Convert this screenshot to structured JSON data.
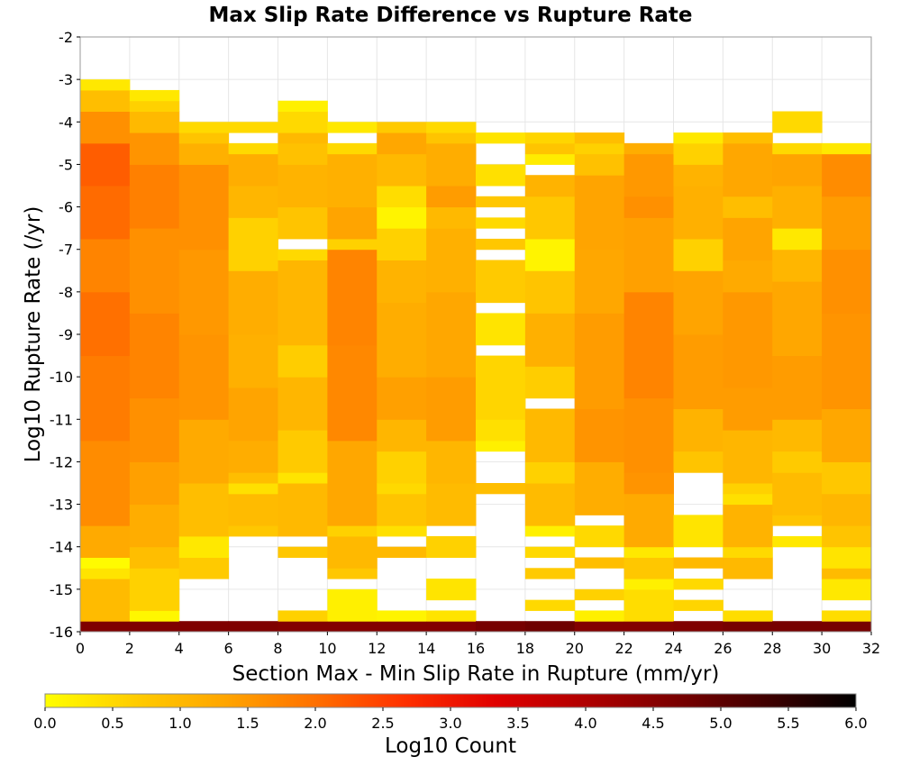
{
  "chart_data": {
    "type": "heatmap",
    "title": "Max Slip Rate Difference vs Rupture Rate",
    "xlabel": "Section Max - Min Slip Rate in Rupture (mm/yr)",
    "ylabel": "Log10 Rupture Rate (/yr)",
    "colorbar_label": "Log10 Count",
    "xlim": [
      0,
      32
    ],
    "ylim": [
      -16,
      -2
    ],
    "x_ticks": [
      "0",
      "2",
      "4",
      "6",
      "8",
      "10",
      "12",
      "14",
      "16",
      "18",
      "20",
      "22",
      "24",
      "26",
      "28",
      "30",
      "32"
    ],
    "y_ticks": [
      "-2",
      "-3",
      "-4",
      "-5",
      "-6",
      "-7",
      "-8",
      "-9",
      "-10",
      "-11",
      "-12",
      "-13",
      "-14",
      "-15",
      "-16"
    ],
    "colorbar_ticks": [
      "0.0",
      "0.5",
      "1.0",
      "1.5",
      "2.0",
      "2.5",
      "3.0",
      "3.5",
      "4.0",
      "4.5",
      "5.0",
      "5.5",
      "6.0"
    ],
    "colorbar_range": [
      0,
      6
    ],
    "colormap": [
      "#ffff00",
      "#ffcc00",
      "#ffa500",
      "#ff7000",
      "#ff3000",
      "#e00000",
      "#b00000",
      "#7a0000",
      "#400000",
      "#000000"
    ],
    "x_bin_width": 2,
    "y_bin_width": 0.25,
    "columns": [
      {
        "x": 1,
        "bands": [
          [
            -16,
            -15.75,
            4.6
          ],
          [
            -15.75,
            -14.75,
            0.95
          ],
          [
            -14.75,
            -14.5,
            0.35
          ],
          [
            -14.5,
            -14.25,
            0.05
          ],
          [
            -14.25,
            -13.5,
            1.25
          ],
          [
            -13.5,
            -11.5,
            1.65
          ],
          [
            -11.5,
            -9.5,
            1.85
          ],
          [
            -9.5,
            -8,
            2.0
          ],
          [
            -8,
            -6.75,
            1.75
          ],
          [
            -6.75,
            -5.5,
            2.05
          ],
          [
            -5.5,
            -4.5,
            2.2
          ],
          [
            -4.5,
            -3.75,
            1.6
          ],
          [
            -3.75,
            -3.25,
            0.9
          ],
          [
            -3.25,
            -3,
            0.3
          ]
        ]
      },
      {
        "x": 3,
        "bands": [
          [
            -16,
            -15.75,
            4.6
          ],
          [
            -15.75,
            -15.5,
            0.1
          ],
          [
            -15.5,
            -14.5,
            0.6
          ],
          [
            -14.5,
            -14,
            0.9
          ],
          [
            -14,
            -13,
            1.2
          ],
          [
            -13,
            -12,
            1.4
          ],
          [
            -12,
            -10.5,
            1.6
          ],
          [
            -10.5,
            -8.5,
            1.75
          ],
          [
            -8.5,
            -6.5,
            1.6
          ],
          [
            -6.5,
            -5,
            1.8
          ],
          [
            -5,
            -4.25,
            1.55
          ],
          [
            -4.25,
            -3.75,
            1.0
          ],
          [
            -3.75,
            -3.5,
            0.6
          ],
          [
            -3.5,
            -3.25,
            0.3
          ]
        ]
      },
      {
        "x": 5,
        "bands": [
          [
            -16,
            -15.75,
            4.6
          ],
          [
            -14.75,
            -14.25,
            0.7
          ],
          [
            -14.25,
            -13.75,
            0.3
          ],
          [
            -13.75,
            -12.5,
            0.9
          ],
          [
            -12.5,
            -11,
            1.25
          ],
          [
            -11,
            -9,
            1.55
          ],
          [
            -9,
            -7,
            1.5
          ],
          [
            -7,
            -5,
            1.6
          ],
          [
            -5,
            -4.5,
            1.15
          ],
          [
            -4.5,
            -4.25,
            0.8
          ],
          [
            -4.25,
            -4,
            0.5
          ]
        ]
      },
      {
        "x": 7,
        "bands": [
          [
            -16,
            -15.75,
            4.6
          ],
          [
            -13.75,
            -13.5,
            0.75
          ],
          [
            -13.5,
            -12.75,
            0.95
          ],
          [
            -12.75,
            -12.5,
            0.4
          ],
          [
            -12.5,
            -12.25,
            0.9
          ],
          [
            -12.25,
            -11.5,
            1.2
          ],
          [
            -11.5,
            -10.25,
            1.35
          ],
          [
            -10.25,
            -9,
            1.15
          ],
          [
            -9,
            -7.5,
            1.2
          ],
          [
            -7.5,
            -6.25,
            0.6
          ],
          [
            -6.25,
            -5.5,
            1.05
          ],
          [
            -5.5,
            -4.75,
            1.2
          ],
          [
            -4.75,
            -4.5,
            0.5
          ],
          [
            -4.25,
            -4,
            0.5
          ]
        ]
      },
      {
        "x": 9,
        "bands": [
          [
            -16,
            -15.75,
            4.55
          ],
          [
            -15.75,
            -15.5,
            0.6
          ],
          [
            -14.25,
            -14,
            0.75
          ],
          [
            -13.75,
            -12.5,
            1.0
          ],
          [
            -12.5,
            -12.25,
            0.35
          ],
          [
            -12.25,
            -11.25,
            0.7
          ],
          [
            -11.25,
            -10,
            1.05
          ],
          [
            -10,
            -9.25,
            0.65
          ],
          [
            -9.25,
            -7.25,
            1.05
          ],
          [
            -7.25,
            -7,
            0.5
          ],
          [
            -6.75,
            -6,
            0.8
          ],
          [
            -6,
            -5,
            1.1
          ],
          [
            -5,
            -4.5,
            0.85
          ],
          [
            -4.5,
            -4.25,
            1.0
          ],
          [
            -4.25,
            -3.75,
            0.5
          ],
          [
            -3.75,
            -3.5,
            0.2
          ]
        ]
      },
      {
        "x": 11,
        "bands": [
          [
            -16,
            -15.75,
            4.55
          ],
          [
            -15.75,
            -15,
            0.2
          ],
          [
            -14.75,
            -14.5,
            0.75
          ],
          [
            -14.5,
            -13.75,
            1.0
          ],
          [
            -13.75,
            -13.5,
            0.6
          ],
          [
            -13.5,
            -11.5,
            1.3
          ],
          [
            -11.5,
            -9.25,
            1.7
          ],
          [
            -9.25,
            -7,
            1.75
          ],
          [
            -7,
            -6.75,
            0.6
          ],
          [
            -6.75,
            -6,
            1.35
          ],
          [
            -6,
            -4.75,
            1.15
          ],
          [
            -4.75,
            -4.5,
            0.5
          ],
          [
            -4.25,
            -4,
            0.3
          ]
        ]
      },
      {
        "x": 13,
        "bands": [
          [
            -16,
            -15.75,
            4.55
          ],
          [
            -15.75,
            -15.5,
            0.15
          ],
          [
            -14.25,
            -14,
            1.0
          ],
          [
            -13.75,
            -13.5,
            0.4
          ],
          [
            -13.5,
            -12.75,
            0.8
          ],
          [
            -12.75,
            -12.5,
            0.5
          ],
          [
            -12.5,
            -11.75,
            0.6
          ],
          [
            -11.75,
            -11,
            1.05
          ],
          [
            -11,
            -10,
            1.4
          ],
          [
            -10,
            -8.25,
            1.2
          ],
          [
            -8.25,
            -7.25,
            1.1
          ],
          [
            -7.25,
            -6.5,
            0.6
          ],
          [
            -6.5,
            -6,
            0.15
          ],
          [
            -6,
            -5.5,
            0.45
          ],
          [
            -5.5,
            -4.75,
            1.0
          ],
          [
            -4.75,
            -4.25,
            1.3
          ],
          [
            -4.25,
            -4,
            0.7
          ]
        ]
      },
      {
        "x": 15,
        "bands": [
          [
            -16,
            -15.75,
            4.55
          ],
          [
            -15.75,
            -15.5,
            0.35
          ],
          [
            -15.25,
            -14.75,
            0.35
          ],
          [
            -14.25,
            -13.75,
            0.6
          ],
          [
            -13.5,
            -12.5,
            0.95
          ],
          [
            -12.5,
            -11.5,
            1.05
          ],
          [
            -11.5,
            -10,
            1.45
          ],
          [
            -10,
            -8,
            1.3
          ],
          [
            -8,
            -6.5,
            1.15
          ],
          [
            -6.5,
            -6,
            1.0
          ],
          [
            -6,
            -5.5,
            1.45
          ],
          [
            -5.5,
            -4.5,
            1.2
          ],
          [
            -4.5,
            -4.25,
            0.8
          ],
          [
            -4.25,
            -4,
            0.5
          ]
        ]
      },
      {
        "x": 17,
        "bands": [
          [
            -16,
            -15.75,
            4.7
          ],
          [
            -12.75,
            -12.5,
            0.9
          ],
          [
            -11.75,
            -11.5,
            0.2
          ],
          [
            -11.5,
            -11,
            0.4
          ],
          [
            -11,
            -9.5,
            0.55
          ],
          [
            -9.25,
            -8.5,
            0.35
          ],
          [
            -8.25,
            -7.25,
            0.7
          ],
          [
            -7,
            -6.75,
            0.75
          ],
          [
            -6.5,
            -6.25,
            0.5
          ],
          [
            -6,
            -5.75,
            0.75
          ],
          [
            -5.5,
            -5,
            0.4
          ],
          [
            -4.5,
            -4.25,
            0.35
          ]
        ]
      },
      {
        "x": 19,
        "bands": [
          [
            -16,
            -15.75,
            4.8
          ],
          [
            -15.5,
            -15.25,
            0.5
          ],
          [
            -14.75,
            -14.5,
            0.7
          ],
          [
            -14.25,
            -14,
            0.5
          ],
          [
            -13.75,
            -13.5,
            0.2
          ],
          [
            -13.5,
            -12.5,
            0.95
          ],
          [
            -12.5,
            -12,
            0.6
          ],
          [
            -12,
            -10.75,
            1.0
          ],
          [
            -10.5,
            -9.75,
            0.65
          ],
          [
            -9.75,
            -8.5,
            1.15
          ],
          [
            -8.5,
            -7.5,
            0.8
          ],
          [
            -7.5,
            -6.75,
            0.15
          ],
          [
            -6.75,
            -5.75,
            0.75
          ],
          [
            -5.75,
            -5.25,
            1.1
          ],
          [
            -5,
            -4.75,
            0.25
          ],
          [
            -4.75,
            -4.5,
            0.8
          ],
          [
            -4.5,
            -4.25,
            0.55
          ]
        ]
      },
      {
        "x": 21,
        "bands": [
          [
            -16,
            -15.75,
            4.55
          ],
          [
            -15.75,
            -15.5,
            0.2
          ],
          [
            -15.25,
            -15,
            0.6
          ],
          [
            -14.5,
            -14.25,
            0.9
          ],
          [
            -14,
            -13.5,
            0.5
          ],
          [
            -13.25,
            -12,
            1.2
          ],
          [
            -12,
            -10.75,
            1.55
          ],
          [
            -10.75,
            -8.5,
            1.45
          ],
          [
            -8.5,
            -7,
            1.3
          ],
          [
            -7,
            -5.25,
            1.35
          ],
          [
            -5.25,
            -4.75,
            0.85
          ],
          [
            -4.75,
            -4.5,
            0.6
          ],
          [
            -4.5,
            -4.25,
            0.9
          ]
        ]
      },
      {
        "x": 23,
        "bands": [
          [
            -16,
            -15.75,
            4.55
          ],
          [
            -15.75,
            -15,
            0.45
          ],
          [
            -15,
            -14.75,
            0.2
          ],
          [
            -14.75,
            -14.25,
            0.75
          ],
          [
            -14.25,
            -14,
            0.3
          ],
          [
            -14,
            -12.75,
            1.25
          ],
          [
            -12.75,
            -12.25,
            1.55
          ],
          [
            -12.25,
            -10.5,
            1.6
          ],
          [
            -10.5,
            -8,
            1.75
          ],
          [
            -8,
            -6.25,
            1.4
          ],
          [
            -6.25,
            -5.75,
            1.6
          ],
          [
            -5.75,
            -4.75,
            1.5
          ],
          [
            -4.75,
            -4.5,
            1.2
          ]
        ]
      },
      {
        "x": 25,
        "bands": [
          [
            -16,
            -15.75,
            4.6
          ],
          [
            -15.5,
            -15.25,
            0.55
          ],
          [
            -15,
            -14.75,
            0.5
          ],
          [
            -14.5,
            -14.25,
            1.0
          ],
          [
            -14,
            -13.25,
            0.35
          ],
          [
            -12.25,
            -11.75,
            0.8
          ],
          [
            -11.75,
            -10.75,
            1.1
          ],
          [
            -10.75,
            -9,
            1.45
          ],
          [
            -9,
            -7.5,
            1.35
          ],
          [
            -7.5,
            -6.75,
            0.6
          ],
          [
            -6.75,
            -5.5,
            1.15
          ],
          [
            -5.5,
            -5,
            1.1
          ],
          [
            -5,
            -4.5,
            0.6
          ],
          [
            -4.5,
            -4.25,
            0.3
          ]
        ]
      },
      {
        "x": 27,
        "bands": [
          [
            -16,
            -15.75,
            4.7
          ],
          [
            -15.75,
            -15.5,
            0.45
          ],
          [
            -14.75,
            -14.25,
            1.0
          ],
          [
            -14.25,
            -14,
            0.5
          ],
          [
            -14,
            -13,
            1.1
          ],
          [
            -13,
            -12.75,
            0.4
          ],
          [
            -12.75,
            -12.5,
            0.6
          ],
          [
            -12.5,
            -11.25,
            1.05
          ],
          [
            -11.25,
            -10.25,
            1.45
          ],
          [
            -10.25,
            -8,
            1.5
          ],
          [
            -8,
            -7.25,
            1.25
          ],
          [
            -7.25,
            -6.25,
            1.35
          ],
          [
            -6.25,
            -5.75,
            0.9
          ],
          [
            -5.75,
            -4.5,
            1.3
          ],
          [
            -4.5,
            -4.25,
            0.9
          ]
        ]
      },
      {
        "x": 29,
        "bands": [
          [
            -16,
            -15.75,
            4.7
          ],
          [
            -14,
            -13.75,
            0.3
          ],
          [
            -13.5,
            -13.25,
            0.8
          ],
          [
            -13.25,
            -12.25,
            0.95
          ],
          [
            -12.25,
            -11.75,
            0.7
          ],
          [
            -11.75,
            -11,
            1.0
          ],
          [
            -11,
            -9.5,
            1.45
          ],
          [
            -9.5,
            -7.75,
            1.3
          ],
          [
            -7.75,
            -7,
            1.05
          ],
          [
            -7,
            -6.5,
            0.3
          ],
          [
            -6.5,
            -5.5,
            1.15
          ],
          [
            -5.5,
            -4.75,
            1.35
          ],
          [
            -4.75,
            -4.5,
            0.5
          ],
          [
            -4.25,
            -3.75,
            0.5
          ]
        ]
      },
      {
        "x": 31,
        "bands": [
          [
            -16,
            -15.75,
            4.7
          ],
          [
            -15.75,
            -15.5,
            0.45
          ],
          [
            -15.25,
            -14.75,
            0.3
          ],
          [
            -14.75,
            -14.5,
            0.95
          ],
          [
            -14.5,
            -14,
            0.35
          ],
          [
            -14,
            -13.5,
            0.8
          ],
          [
            -13.5,
            -12.75,
            1.05
          ],
          [
            -12.75,
            -12,
            0.75
          ],
          [
            -12,
            -10.75,
            1.3
          ],
          [
            -10.75,
            -8.5,
            1.55
          ],
          [
            -8.5,
            -7,
            1.6
          ],
          [
            -7,
            -5.75,
            1.45
          ],
          [
            -5.75,
            -4.75,
            1.65
          ],
          [
            -4.75,
            -4.5,
            0.3
          ]
        ]
      }
    ]
  }
}
